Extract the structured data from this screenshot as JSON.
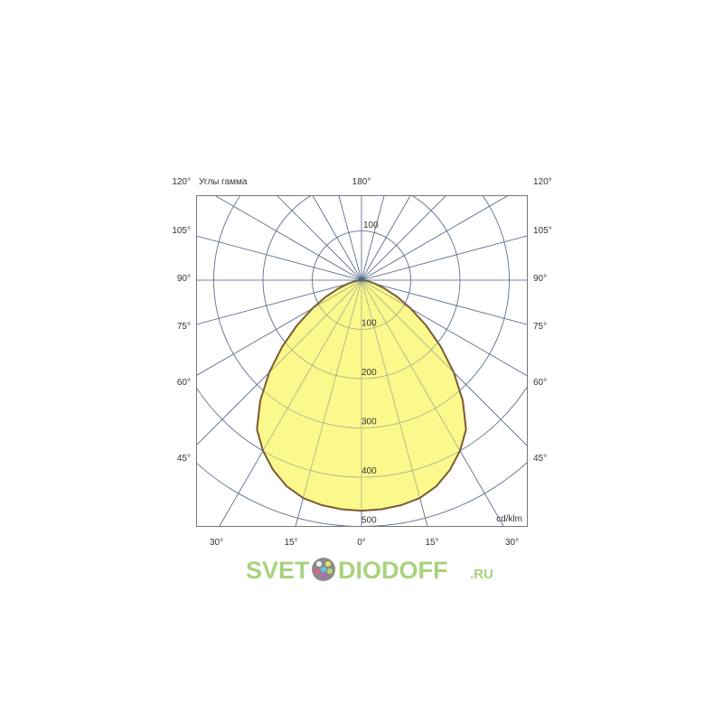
{
  "chart_data": {
    "type": "polar",
    "title": "",
    "angle_label": "Углы гамма",
    "unit_label": "cd/klm",
    "radial_ticks": [
      100,
      200,
      300,
      400,
      500
    ],
    "radial_top_tick": "100",
    "rlim": [
      0,
      500
    ],
    "angle_step_deg": 15,
    "grid": true,
    "left_angle_labels": [
      "120°",
      "105°",
      "90°",
      "75°",
      "60°",
      "45°",
      "30°"
    ],
    "right_angle_labels": [
      "120°",
      "105°",
      "90°",
      "75°",
      "60°",
      "45°",
      "30°"
    ],
    "top_angle_label": "180°",
    "bottom_angle_labels": [
      "15°",
      "0°",
      "15°"
    ],
    "series": [
      {
        "symmetric": true,
        "gamma_deg": [
          0,
          5,
          10,
          15,
          20,
          25,
          30,
          35,
          40,
          45,
          50,
          55,
          60,
          65,
          70,
          75,
          80,
          85,
          90
        ],
        "intensity": [
          468,
          467,
          464,
          458,
          445,
          425,
          400,
          370,
          320,
          265,
          210,
          160,
          115,
          80,
          50,
          30,
          15,
          5,
          0
        ]
      }
    ],
    "colors": {
      "grid": "#5b6f8c",
      "fill": "#fbf98c",
      "outline": "#7a5a32"
    }
  },
  "watermark": {
    "left": "SVET",
    "right": "DIODOFF",
    "suffix": ".RU"
  }
}
